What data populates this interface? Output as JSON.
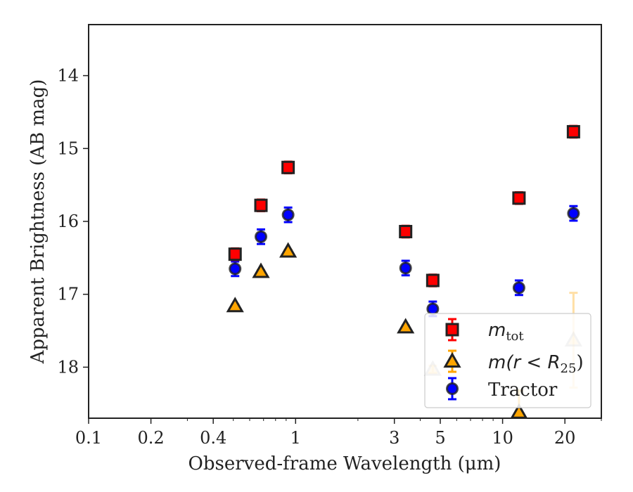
{
  "chart_data": {
    "type": "scatter",
    "xlabel": "Observed-frame Wavelength (μm)",
    "ylabel": "Apparent Brightness (AB mag)",
    "xscale": "log",
    "xlim": [
      0.1,
      30
    ],
    "ylim": [
      18.7,
      13.3
    ],
    "y_inverted": true,
    "x_ticks": [
      0.1,
      0.2,
      0.4,
      1,
      3,
      5,
      10,
      20
    ],
    "x_tick_labels": [
      "0.1",
      "0.2",
      "0.4",
      "1",
      "3",
      "5",
      "10",
      "20"
    ],
    "y_ticks": [
      14,
      15,
      16,
      17,
      18
    ],
    "y_tick_labels": [
      "14",
      "15",
      "16",
      "17",
      "18"
    ],
    "grid": false,
    "legend_placement": "bottom-right",
    "series": [
      {
        "name": "m_tot",
        "marker": "square",
        "color": "#ff0000",
        "edge": "#222222",
        "x": [
          0.51,
          0.68,
          0.92,
          3.4,
          4.6,
          12.0,
          22.0
        ],
        "y": [
          16.45,
          15.78,
          15.26,
          16.14,
          16.81,
          15.68,
          14.77
        ],
        "err": [
          0.08,
          0.08,
          0.08,
          0.08,
          0.08,
          0.08,
          0.08
        ]
      },
      {
        "name": "m(r<R25)",
        "marker": "triangle",
        "color": "#ffa500",
        "edge": "#222222",
        "x": [
          0.51,
          0.68,
          0.92,
          3.4,
          4.6,
          12.0,
          22.0
        ],
        "y": [
          17.16,
          16.69,
          16.41,
          17.45,
          18.03,
          18.62,
          17.63
        ],
        "err": [
          0.02,
          0.02,
          0.02,
          0.02,
          0.05,
          0.3,
          0.65
        ],
        "faded": [
          false,
          false,
          false,
          false,
          true,
          false,
          true
        ]
      },
      {
        "name": "Tractor",
        "marker": "circle",
        "color": "#0000ff",
        "edge": "#222222",
        "x": [
          0.51,
          0.68,
          0.92,
          3.4,
          4.6,
          12.0,
          22.0
        ],
        "y": [
          16.65,
          16.21,
          15.91,
          16.64,
          17.2,
          16.91,
          15.89
        ],
        "err": [
          0.1,
          0.1,
          0.1,
          0.1,
          0.1,
          0.1,
          0.1
        ]
      }
    ],
    "legend": {
      "m_tot_main": "m",
      "m_tot_sub": "tot",
      "mr_main": "m",
      "mr_open": "(r < R",
      "mr_sub": "25",
      "mr_close": ")",
      "tractor": "Tractor"
    }
  }
}
